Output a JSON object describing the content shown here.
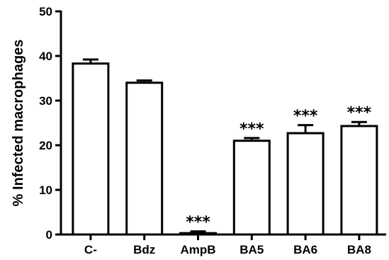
{
  "chart_data": {
    "type": "bar",
    "title": "",
    "xlabel": "",
    "ylabel": "% Infected macrophages",
    "ylim": [
      0,
      50
    ],
    "yticks": [
      0,
      10,
      20,
      30,
      40,
      50
    ],
    "grid": false,
    "legend": "none",
    "categories": [
      "C-",
      "Bdz",
      "AmpB",
      "BA5",
      "BA6",
      "BA8"
    ],
    "values": [
      38.3,
      34.0,
      0.3,
      21.0,
      22.7,
      24.3
    ],
    "errors": [
      0.9,
      0.5,
      0.4,
      0.6,
      1.8,
      0.9
    ],
    "significance": [
      "",
      "",
      "***",
      "***",
      "***",
      "***"
    ],
    "bar_fill": "#ffffff",
    "bar_stroke": "#000000"
  }
}
